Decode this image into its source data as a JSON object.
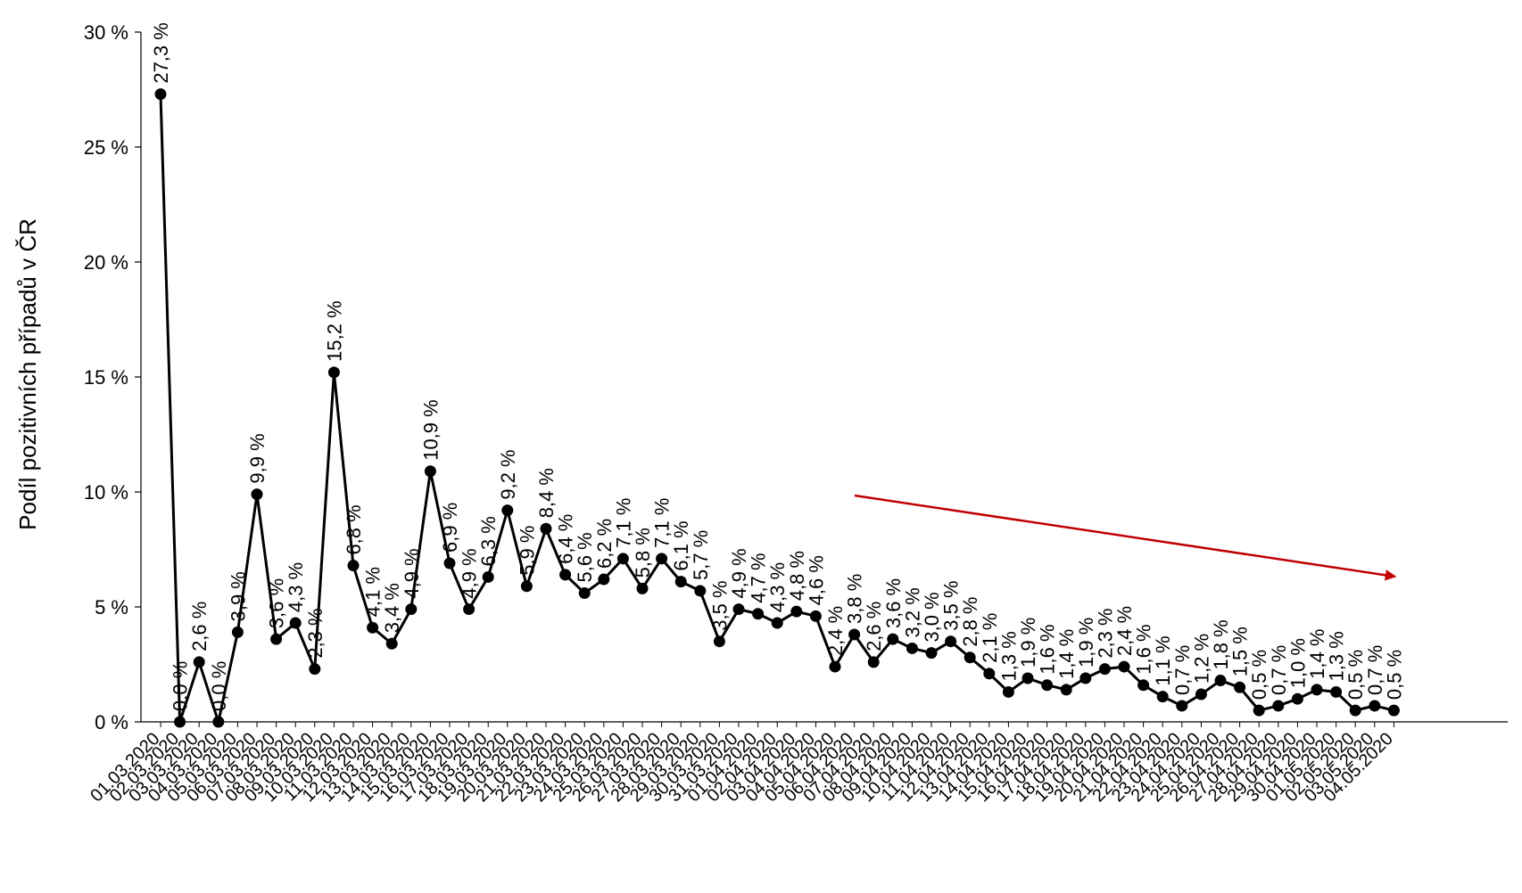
{
  "chart_data": {
    "type": "line",
    "ylabel": "Podíl pozitivních případů v ČR",
    "xlabel": "",
    "ylim": [
      0,
      30
    ],
    "y_ticks": [
      "0 %",
      "5 %",
      "10 %",
      "15 %",
      "20 %",
      "25 %",
      "30 %"
    ],
    "grid": false,
    "categories": [
      "01.03.2020",
      "02.03.2020",
      "03.03.2020",
      "04.03.2020",
      "05.03.2020",
      "06.03.2020",
      "07.03.2020",
      "08.03.2020",
      "09.03.2020",
      "10.03.2020",
      "11.03.2020",
      "12.03.2020",
      "13.03.2020",
      "14.03.2020",
      "15.03.2020",
      "16.03.2020",
      "17.03.2020",
      "18.03.2020",
      "19.03.2020",
      "20.03.2020",
      "21.03.2020",
      "22.03.2020",
      "23.03.2020",
      "24.03.2020",
      "25.03.2020",
      "26.03.2020",
      "27.03.2020",
      "28.03.2020",
      "29.03.2020",
      "30.03.2020",
      "31.03.2020",
      "01.04.2020",
      "02.04.2020",
      "03.04.2020",
      "04.04.2020",
      "05.04.2020",
      "06.04.2020",
      "07.04.2020",
      "08.04.2020",
      "09.04.2020",
      "10.04.2020",
      "11.04.2020",
      "12.04.2020",
      "13.04.2020",
      "14.04.2020",
      "15.04.2020",
      "16.04.2020",
      "17.04.2020",
      "18.04.2020",
      "19.04.2020",
      "20.04.2020",
      "21.04.2020",
      "22.04.2020",
      "23.04.2020",
      "24.04.2020",
      "25.04.2020",
      "26.04.2020",
      "27.04.2020",
      "28.04.2020",
      "29.04.2020",
      "30.04.2020",
      "01.05.2020",
      "02.05.2020",
      "03.05.2020",
      "04.05.2020"
    ],
    "series": [
      {
        "values": [
          27.3,
          0.0,
          2.6,
          0.0,
          3.9,
          9.9,
          3.6,
          4.3,
          2.3,
          15.2,
          6.8,
          4.1,
          3.4,
          4.9,
          10.9,
          6.9,
          4.9,
          6.3,
          9.2,
          5.9,
          8.4,
          6.4,
          5.6,
          6.2,
          7.1,
          5.8,
          7.1,
          6.1,
          5.7,
          3.5,
          4.9,
          4.7,
          4.3,
          4.8,
          4.6,
          2.4,
          3.8,
          2.6,
          3.6,
          3.2,
          3.0,
          3.5,
          2.8,
          2.1,
          1.3,
          1.9,
          1.6,
          1.4,
          1.9,
          2.3,
          2.4,
          1.6,
          1.1,
          0.7,
          1.2,
          1.8,
          1.5,
          0.5,
          0.7,
          1.0,
          1.4,
          1.3,
          0.5,
          0.7,
          0.5
        ],
        "labels": [
          "27,3 %",
          "0,0 %",
          "2,6 %",
          "0,0 %",
          "3,9 %",
          "9,9 %",
          "3,6 %",
          "4,3 %",
          "2,3 %",
          "15,2 %",
          "6,8 %",
          "4,1 %",
          "3,4 %",
          "4,9 %",
          "10,9 %",
          "6,9 %",
          "4,9 %",
          "6,3 %",
          "9,2 %",
          "5,9 %",
          "8,4 %",
          "6,4 %",
          "5,6 %",
          "6,2 %",
          "7,1 %",
          "5,8 %",
          "7,1 %",
          "6,1 %",
          "5,7 %",
          "3,5 %",
          "4,9 %",
          "4,7 %",
          "4,3 %",
          "4,8 %",
          "4,6 %",
          "2,4 %",
          "3,8 %",
          "2,6 %",
          "3,6 %",
          "3,2 %",
          "3,0 %",
          "3,5 %",
          "2,8 %",
          "2,1 %",
          "1,3 %",
          "1,9 %",
          "1,6 %",
          "1,4 %",
          "1,9 %",
          "2,3 %",
          "2,4 %",
          "1,6 %",
          "1,1 %",
          "0,7 %",
          "1,2 %",
          "1,8 %",
          "1,5 %",
          "0,5 %",
          "0,7 %",
          "1,0 %",
          "1,4 %",
          "1,3 %",
          "0,5 %",
          "0,7 %",
          "0,5 %"
        ],
        "color": "#000000"
      }
    ],
    "annotations": [
      {
        "type": "trend-arrow",
        "color": "#C00000"
      }
    ]
  }
}
